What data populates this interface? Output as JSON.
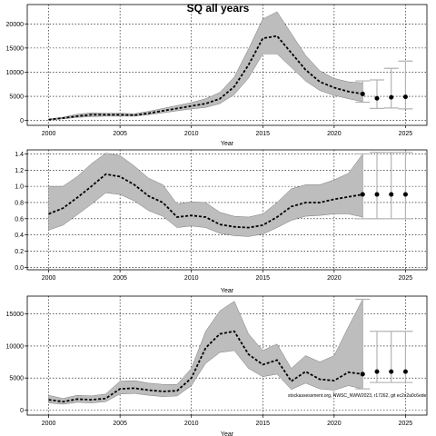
{
  "figure": {
    "title": "SQ all years",
    "credit": "stockassessment.org, NWSC_NWW2023, r17262, git ec2c2a0c6ede"
  },
  "colors": {
    "band": "#bdbdbd",
    "line": "#000000",
    "frame": "#000000",
    "grid": "#000000",
    "forecast": "#b3b3b3"
  },
  "chart_data": [
    {
      "type": "line",
      "name": "recruitment",
      "title": "SQ all years",
      "xlabel": "Year",
      "ylabel": "",
      "xlim": [
        1998.5,
        2026.5
      ],
      "ylim": [
        -1000,
        24000
      ],
      "xticks": [
        2000,
        2005,
        2010,
        2015,
        2020,
        2025
      ],
      "yticks": [
        0,
        5000,
        10000,
        15000,
        20000
      ],
      "ytick_labels": [
        "0",
        "5000",
        "10000",
        "15000",
        "20000"
      ],
      "grid": true,
      "x": [
        2000,
        2001,
        2002,
        2003,
        2004,
        2005,
        2006,
        2007,
        2008,
        2009,
        2010,
        2011,
        2012,
        2013,
        2014,
        2015,
        2016,
        2017,
        2018,
        2019,
        2020,
        2021,
        2022
      ],
      "y": [
        200,
        500,
        900,
        1200,
        1200,
        1200,
        1100,
        1500,
        2000,
        2500,
        3000,
        3500,
        4500,
        7000,
        11500,
        17000,
        17500,
        14000,
        10500,
        8000,
        6800,
        6000,
        5500
      ],
      "lower": [
        100,
        350,
        650,
        800,
        900,
        900,
        900,
        1200,
        1600,
        2000,
        2400,
        2700,
        3500,
        5400,
        8800,
        13800,
        13800,
        11000,
        8200,
        6200,
        5200,
        4500,
        3900
      ],
      "upper": [
        300,
        700,
        1300,
        1600,
        1500,
        1500,
        1400,
        1900,
        2500,
        3100,
        3700,
        4500,
        5800,
        9000,
        14800,
        21000,
        22500,
        18000,
        13500,
        10300,
        8700,
        8000,
        7800
      ],
      "forecast": [
        {
          "x": 2022,
          "y": 5500,
          "lo": 3800,
          "hi": 8200
        },
        {
          "x": 2023,
          "y": 4600,
          "lo": 2500,
          "hi": 8400
        },
        {
          "x": 2024,
          "y": 4800,
          "lo": 2600,
          "hi": 10800
        },
        {
          "x": 2025,
          "y": 4900,
          "lo": 2400,
          "hi": 12300
        }
      ]
    },
    {
      "type": "line",
      "name": "fishing-mortality",
      "title": "",
      "xlabel": "Year",
      "ylabel": "",
      "xlim": [
        1998.5,
        2026.5
      ],
      "ylim": [
        -0.03,
        1.45
      ],
      "xticks": [
        2000,
        2005,
        2010,
        2015,
        2020,
        2025
      ],
      "yticks": [
        0,
        0.2,
        0.4,
        0.6,
        0.8,
        1.0,
        1.2,
        1.4
      ],
      "ytick_labels": [
        "0.0",
        "0.2",
        "0.4",
        "0.6",
        "0.8",
        "1.0",
        "1.2",
        "1.4"
      ],
      "grid": true,
      "x": [
        2000,
        2001,
        2002,
        2003,
        2004,
        2005,
        2006,
        2007,
        2008,
        2009,
        2010,
        2011,
        2012,
        2013,
        2014,
        2015,
        2016,
        2017,
        2018,
        2019,
        2020,
        2021,
        2022
      ],
      "y": [
        0.66,
        0.73,
        0.86,
        1.0,
        1.15,
        1.12,
        1.02,
        0.88,
        0.8,
        0.62,
        0.64,
        0.62,
        0.53,
        0.5,
        0.49,
        0.52,
        0.62,
        0.75,
        0.8,
        0.8,
        0.84,
        0.87,
        0.9
      ],
      "lower": [
        0.46,
        0.52,
        0.65,
        0.78,
        0.92,
        0.9,
        0.82,
        0.7,
        0.63,
        0.49,
        0.51,
        0.49,
        0.42,
        0.39,
        0.38,
        0.41,
        0.49,
        0.58,
        0.63,
        0.64,
        0.66,
        0.66,
        0.62
      ],
      "upper": [
        1.0,
        1.0,
        1.12,
        1.28,
        1.41,
        1.38,
        1.25,
        1.1,
        1.02,
        0.78,
        0.81,
        0.8,
        0.68,
        0.63,
        0.62,
        0.66,
        0.8,
        0.97,
        1.02,
        1.02,
        1.08,
        1.16,
        1.4
      ],
      "forecast": [
        {
          "x": 2022,
          "y": 0.9,
          "lo": 0.6,
          "hi": 1.4
        },
        {
          "x": 2023,
          "y": 0.9,
          "lo": 0.6,
          "hi": 1.42
        },
        {
          "x": 2024,
          "y": 0.9,
          "lo": 0.6,
          "hi": 1.42
        },
        {
          "x": 2025,
          "y": 0.9,
          "lo": 0.6,
          "hi": 1.42
        }
      ]
    },
    {
      "type": "line",
      "name": "ssb",
      "title": "",
      "xlabel": "Year",
      "ylabel": "",
      "xlim": [
        1998.5,
        2026.5
      ],
      "ylim": [
        -800,
        17800
      ],
      "xticks": [
        2000,
        2005,
        2010,
        2015,
        2020,
        2025
      ],
      "yticks": [
        0,
        5000,
        10000,
        15000
      ],
      "ytick_labels": [
        "0",
        "5000",
        "10000",
        "15000"
      ],
      "grid": true,
      "x": [
        2000,
        2001,
        2002,
        2003,
        2004,
        2005,
        2006,
        2007,
        2008,
        2009,
        2010,
        2011,
        2012,
        2013,
        2014,
        2015,
        2016,
        2017,
        2018,
        2019,
        2020,
        2021,
        2022
      ],
      "y": [
        1600,
        1300,
        1700,
        1600,
        1800,
        3300,
        3400,
        3100,
        2900,
        3000,
        5000,
        9700,
        11900,
        12300,
        8700,
        7100,
        7800,
        4500,
        6000,
        4800,
        4600,
        5900,
        5600
      ],
      "lower": [
        1100,
        900,
        1200,
        1100,
        1300,
        2500,
        2600,
        2300,
        2100,
        2200,
        3800,
        7300,
        9000,
        9300,
        6500,
        5200,
        5600,
        3200,
        4200,
        3300,
        3100,
        3800,
        3300
      ],
      "upper": [
        2300,
        1800,
        2300,
        2200,
        2500,
        4500,
        4600,
        4200,
        4000,
        4000,
        6500,
        12300,
        15500,
        17000,
        11900,
        9300,
        10300,
        6500,
        8500,
        7500,
        8500,
        13000,
        17300
      ],
      "forecast": [
        {
          "x": 2022,
          "y": 5600,
          "lo": 3300,
          "hi": 17300
        },
        {
          "x": 2023,
          "y": 6000,
          "lo": 4300,
          "hi": 12300
        },
        {
          "x": 2024,
          "y": 6000,
          "lo": 4300,
          "hi": 12300
        },
        {
          "x": 2025,
          "y": 6000,
          "lo": 4300,
          "hi": 12300
        }
      ]
    }
  ]
}
